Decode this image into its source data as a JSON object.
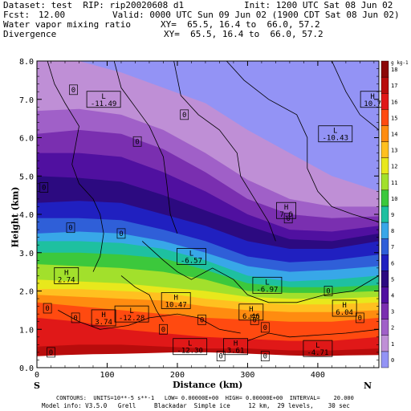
{
  "header": {
    "dataset": "Dataset: test  RIP: rip20020608 d1",
    "init": "Init: 1200 UTC Sat 08 Jun 02",
    "fcst_label": "Fcst:",
    "fcst_value": "12.00",
    "valid": "Valid: 0000 UTC Sun 09 Jun 02 (1900 CDT Sat 08 Jun 02)",
    "field1_name": "Water vapor mixing ratio",
    "field1_xy": "XY=  65.5, 16.4 to  66.0, 57.2",
    "field2_name": "Divergence",
    "field2_xy": "XY=  65.5, 16.4 to  66.0, 57.2"
  },
  "footer": {
    "contours": "CONTOURS:  UNITS=10**-5 s**-1   LOW= 0.00000E+00  HIGH= 0.00000E+00  INTERVAL=    20.000",
    "model_info": "Model info: V3.5.0   Grell     Blackadar  Simple ice     12 km,  29 levels,    30 sec"
  },
  "chart_data": {
    "type": "heatmap",
    "xlabel": "Distance (km)",
    "ylabel": "Height (km)",
    "xlim": [
      0,
      487
    ],
    "ylim": [
      0,
      8
    ],
    "x_ticks": [
      0,
      100,
      200,
      300,
      400
    ],
    "y_ticks": [
      "0.0",
      "1.0",
      "2.0",
      "3.0",
      "4.0",
      "5.0",
      "6.0",
      "7.0",
      "8.0"
    ],
    "left_end_label": "S",
    "right_end_label": "N",
    "colorbar": {
      "unit_label": "g kg-1",
      "levels": [
        0,
        1,
        2,
        3,
        4,
        5,
        6,
        7,
        8,
        9,
        10,
        11,
        12,
        13,
        14,
        15,
        16,
        17,
        18
      ],
      "colors": [
        "#9393f5",
        "#bf8fd6",
        "#a060c8",
        "#7a2fb0",
        "#5010a0",
        "#2c0a80",
        "#2020c0",
        "#2f5fd8",
        "#38a7e8",
        "#1ec0a0",
        "#3cc83c",
        "#a2e02c",
        "#e8e81c",
        "#ffc020",
        "#ff8c10",
        "#ff4a10",
        "#e01818",
        "#b80c0c",
        "#8c0808"
      ]
    },
    "zero_contour_label": "0",
    "extrema_labels": [
      {
        "kind": "L",
        "value": "-11.49",
        "x": 95,
        "z": 7.0
      },
      {
        "kind": "H",
        "value": "10.7",
        "x": 478,
        "z": 7.0
      },
      {
        "kind": "L",
        "value": "-10.43",
        "x": 425,
        "z": 6.1
      },
      {
        "kind": "H",
        "value": "7.6",
        "x": 355,
        "z": 4.1
      },
      {
        "kind": "H",
        "value": "2.74",
        "x": 42,
        "z": 2.4
      },
      {
        "kind": "L",
        "value": "-6.57",
        "x": 220,
        "z": 2.9
      },
      {
        "kind": "L",
        "value": "-6.97",
        "x": 328,
        "z": 2.15
      },
      {
        "kind": "H",
        "value": "10.47",
        "x": 198,
        "z": 1.75
      },
      {
        "kind": "H",
        "value": "6.46",
        "x": 305,
        "z": 1.45
      },
      {
        "kind": "H",
        "value": "6.04",
        "x": 438,
        "z": 1.55
      },
      {
        "kind": "L",
        "value": "-12.28",
        "x": 135,
        "z": 1.4
      },
      {
        "kind": "H",
        "value": "3.74",
        "x": 95,
        "z": 1.3
      },
      {
        "kind": "L",
        "value": "-12.30",
        "x": 218,
        "z": 0.55
      },
      {
        "kind": "H",
        "value": "3.61",
        "x": 283,
        "z": 0.55
      },
      {
        "kind": "L",
        "value": "-4.71",
        "x": 400,
        "z": 0.5
      }
    ]
  }
}
